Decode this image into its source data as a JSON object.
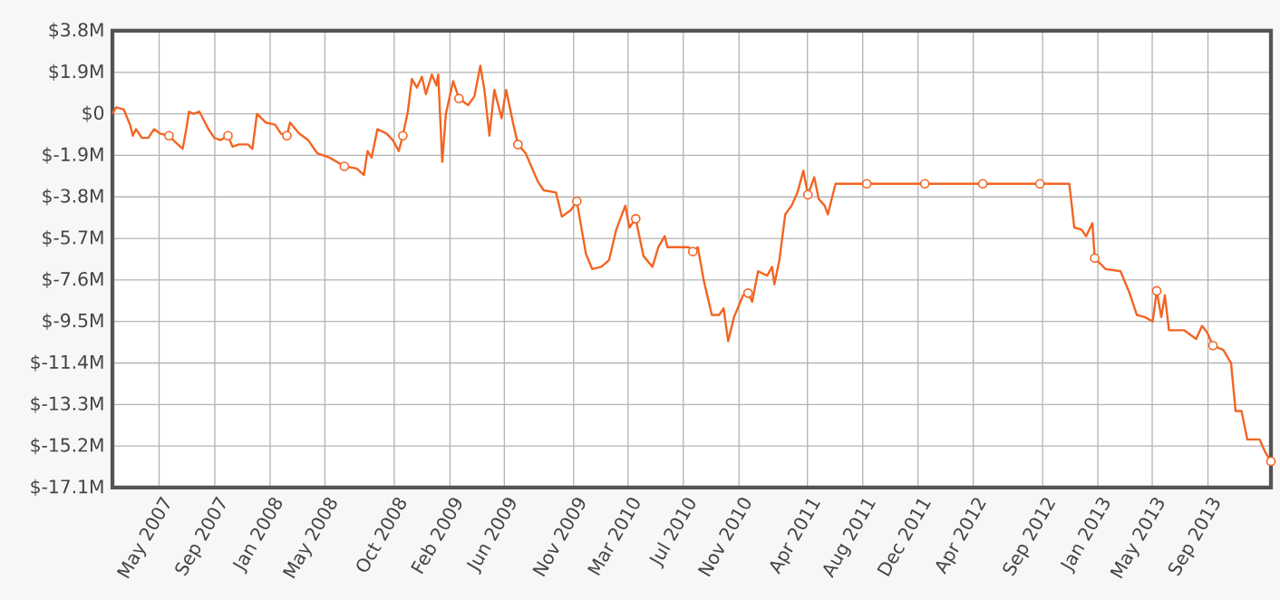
{
  "chart_data": {
    "type": "line",
    "x": [
      "2007-02-01",
      "2007-02-09",
      "2007-02-26",
      "2007-03-12",
      "2007-03-18",
      "2007-03-25",
      "2007-04-07",
      "2007-04-21",
      "2007-05-04",
      "2007-05-17",
      "2007-06-06",
      "2007-06-20",
      "2007-07-06",
      "2007-07-14",
      "2007-07-20",
      "2007-07-30",
      "2007-08-12",
      "2007-09-01",
      "2007-09-14",
      "2007-09-28",
      "2007-10-14",
      "2007-10-24",
      "2007-11-07",
      "2007-11-27",
      "2007-12-07",
      "2007-12-17",
      "2008-01-06",
      "2008-01-26",
      "2008-02-08",
      "2008-02-21",
      "2008-02-28",
      "2008-03-19",
      "2008-04-08",
      "2008-04-28",
      "2008-05-25",
      "2008-06-27",
      "2008-07-24",
      "2008-08-09",
      "2008-08-17",
      "2008-08-26",
      "2008-09-08",
      "2008-09-28",
      "2008-10-12",
      "2008-10-25",
      "2008-11-03",
      "2008-11-14",
      "2008-11-23",
      "2008-12-04",
      "2008-12-15",
      "2008-12-24",
      "2009-01-06",
      "2009-01-16",
      "2009-01-20",
      "2009-01-29",
      "2009-02-06",
      "2009-02-22",
      "2009-03-07",
      "2009-03-27",
      "2009-04-10",
      "2009-04-23",
      "2009-05-02",
      "2009-05-13",
      "2009-05-24",
      "2009-06-09",
      "2009-06-19",
      "2009-07-03",
      "2009-07-15",
      "2009-08-01",
      "2009-08-28",
      "2009-09-10",
      "2009-10-07",
      "2009-10-20",
      "2009-11-09",
      "2009-11-22",
      "2009-12-12",
      "2009-12-26",
      "2010-01-15",
      "2010-02-01",
      "2010-02-17",
      "2010-03-09",
      "2010-03-18",
      "2010-04-01",
      "2010-04-18",
      "2010-05-08",
      "2010-05-21",
      "2010-06-04",
      "2010-06-10",
      "2010-07-27",
      "2010-08-05",
      "2010-08-16",
      "2010-08-29",
      "2010-09-16",
      "2010-10-02",
      "2010-10-12",
      "2010-10-22",
      "2010-11-04",
      "2010-11-24",
      "2010-12-05",
      "2010-12-14",
      "2010-12-27",
      "2011-01-16",
      "2011-01-27",
      "2011-02-01",
      "2011-02-12",
      "2011-02-25",
      "2011-03-11",
      "2011-03-24",
      "2011-04-06",
      "2011-04-16",
      "2011-04-30",
      "2011-05-10",
      "2011-05-23",
      "2011-05-30",
      "2011-06-16",
      "2011-08-24",
      "2011-12-30",
      "2012-05-06",
      "2012-09-09",
      "2012-11-13",
      "2012-11-24",
      "2012-12-10",
      "2012-12-20",
      "2013-01-03",
      "2013-01-08",
      "2013-02-01",
      "2013-03-06",
      "2013-03-26",
      "2013-04-11",
      "2013-04-29",
      "2013-05-16",
      "2013-05-25",
      "2013-06-04",
      "2013-06-12",
      "2013-06-21",
      "2013-07-24",
      "2013-08-20",
      "2013-09-02",
      "2013-09-13",
      "2013-09-26",
      "2013-10-19",
      "2013-11-05",
      "2013-11-15",
      "2013-11-28",
      "2013-12-11",
      "2014-01-07",
      "2014-01-20",
      "2014-02-01"
    ],
    "series": [
      {
        "color": "#f26522",
        "values": [
          0.0,
          0.3,
          0.2,
          -0.5,
          -1.0,
          -0.7,
          -1.1,
          -1.1,
          -0.7,
          -0.9,
          -1.0,
          -1.3,
          -1.6,
          -0.7,
          0.1,
          0.0,
          0.1,
          -0.7,
          -1.1,
          -1.2,
          -1.0,
          -1.5,
          -1.4,
          -1.4,
          -1.6,
          0.0,
          -0.4,
          -0.5,
          -0.9,
          -1.0,
          -0.4,
          -0.9,
          -1.2,
          -1.8,
          -2.0,
          -2.4,
          -2.5,
          -2.8,
          -1.7,
          -2.0,
          -0.7,
          -0.9,
          -1.2,
          -1.7,
          -1.0,
          0.1,
          1.6,
          1.2,
          1.7,
          0.9,
          1.8,
          1.3,
          1.8,
          -2.2,
          0.0,
          1.5,
          0.7,
          0.4,
          0.8,
          2.2,
          1.1,
          -1.0,
          1.1,
          -0.2,
          1.1,
          -0.3,
          -1.4,
          -1.8,
          -3.1,
          -3.5,
          -3.6,
          -4.7,
          -4.4,
          -4.0,
          -6.4,
          -7.1,
          -7.0,
          -6.7,
          -5.3,
          -4.2,
          -5.2,
          -4.8,
          -6.5,
          -7.0,
          -6.1,
          -5.6,
          -6.1,
          -6.1,
          -6.3,
          -6.1,
          -7.6,
          -9.2,
          -9.2,
          -8.9,
          -10.4,
          -9.3,
          -8.3,
          -8.2,
          -8.6,
          -7.2,
          -7.4,
          -7.0,
          -7.8,
          -6.7,
          -4.6,
          -4.2,
          -3.6,
          -2.6,
          -3.7,
          -2.9,
          -3.9,
          -4.2,
          -4.6,
          -3.2,
          -3.2,
          -3.2,
          -3.2,
          -3.2,
          -3.2,
          -5.2,
          -5.3,
          -5.6,
          -5.0,
          -6.6,
          -7.1,
          -7.2,
          -8.2,
          -9.2,
          -9.3,
          -9.5,
          -8.1,
          -9.3,
          -8.3,
          -9.9,
          -9.9,
          -10.3,
          -9.7,
          -10.0,
          -10.6,
          -10.8,
          -11.4,
          -13.6,
          -13.6,
          -14.9,
          -14.9,
          -15.5,
          -15.9
        ]
      },
      {
        "type": "scatter",
        "marker": "circle",
        "color": "#f26522",
        "x": [
          "2007-06-06",
          "2007-10-14",
          "2008-02-21",
          "2008-06-27",
          "2008-11-03",
          "2009-03-07",
          "2009-07-15",
          "2009-11-22",
          "2010-04-01",
          "2010-08-05",
          "2010-12-05",
          "2011-04-16",
          "2011-08-24",
          "2011-12-30",
          "2012-05-06",
          "2012-09-09",
          "2013-01-08",
          "2013-05-25",
          "2013-09-26",
          "2014-02-01"
        ],
        "values": [
          -1.0,
          -1.0,
          -1.0,
          -2.4,
          -1.0,
          0.7,
          -1.4,
          -4.0,
          -4.8,
          -6.3,
          -8.2,
          -3.7,
          -3.2,
          -3.2,
          -3.2,
          -3.2,
          -6.6,
          -8.1,
          -10.6,
          -15.9
        ]
      }
    ],
    "xlim": [
      "2007-02-01",
      "2014-02-01"
    ],
    "xticks": [
      {
        "value": "2007-05-15",
        "label": "May 2007"
      },
      {
        "value": "2007-09-15",
        "label": "Sep 2007"
      },
      {
        "value": "2008-01-15",
        "label": "Jan 2008"
      },
      {
        "value": "2008-05-15",
        "label": "May 2008"
      },
      {
        "value": "2008-10-15",
        "label": "Oct 2008"
      },
      {
        "value": "2009-02-15",
        "label": "Feb 2009"
      },
      {
        "value": "2009-06-15",
        "label": "Jun 2009"
      },
      {
        "value": "2009-11-15",
        "label": "Nov 2009"
      },
      {
        "value": "2010-03-15",
        "label": "Mar 2010"
      },
      {
        "value": "2010-07-15",
        "label": "Jul 2010"
      },
      {
        "value": "2010-11-15",
        "label": "Nov 2010"
      },
      {
        "value": "2011-04-15",
        "label": "Apr 2011"
      },
      {
        "value": "2011-08-15",
        "label": "Aug 2011"
      },
      {
        "value": "2011-12-15",
        "label": "Dec 2011"
      },
      {
        "value": "2012-04-15",
        "label": "Apr 2012"
      },
      {
        "value": "2012-09-15",
        "label": "Sep 2012"
      },
      {
        "value": "2013-01-15",
        "label": "Jan 2013"
      },
      {
        "value": "2013-05-15",
        "label": "May 2013"
      },
      {
        "value": "2013-09-15",
        "label": "Sep 2013"
      }
    ],
    "ylim": [
      -17.1,
      3.8
    ],
    "yticks": [
      {
        "value": 3.8,
        "label": "$3.8M"
      },
      {
        "value": 1.9,
        "label": "$1.9M"
      },
      {
        "value": 0,
        "label": "$0"
      },
      {
        "value": -1.9,
        "label": "$-1.9M"
      },
      {
        "value": -3.8,
        "label": "$-3.8M"
      },
      {
        "value": -5.7,
        "label": "$-5.7M"
      },
      {
        "value": -7.6,
        "label": "$-7.6M"
      },
      {
        "value": -9.5,
        "label": "$-9.5M"
      },
      {
        "value": -11.4,
        "label": "$-11.4M"
      },
      {
        "value": -13.3,
        "label": "$-13.3M"
      },
      {
        "value": -15.2,
        "label": "$-15.2M"
      },
      {
        "value": -17.1,
        "label": "$-17.1M"
      }
    ],
    "grid": true
  }
}
